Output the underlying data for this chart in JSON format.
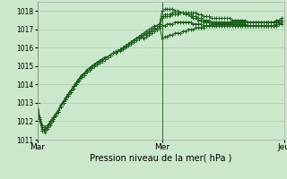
{
  "title": "",
  "xlabel": "Pression niveau de la mer( hPa )",
  "ylabel": "",
  "bg_color": "#cce8cc",
  "grid_color": "#aaccaa",
  "line_color": "#1a5c1a",
  "ylim": [
    1011.0,
    1018.5
  ],
  "xlim": [
    0,
    95
  ],
  "x_ticks": [
    0,
    48,
    95
  ],
  "x_tick_labels": [
    "Mar",
    "Mer",
    "Jeu"
  ],
  "series": [
    [
      1013.0,
      1012.2,
      1011.8,
      1011.7,
      1011.8,
      1012.0,
      1012.2,
      1012.4,
      1012.6,
      1012.9,
      1013.1,
      1013.3,
      1013.5,
      1013.7,
      1013.9,
      1014.1,
      1014.3,
      1014.5,
      1014.6,
      1014.7,
      1014.8,
      1015.0,
      1015.1,
      1015.2,
      1015.2,
      1015.3,
      1015.4,
      1015.5,
      1015.6,
      1015.7,
      1015.7,
      1015.8,
      1015.8,
      1015.9,
      1016.0,
      1016.1,
      1016.2,
      1016.3,
      1016.4,
      1016.5,
      1016.6,
      1016.7,
      1016.8,
      1016.9,
      1017.0,
      1017.1,
      1017.2,
      1017.3,
      1016.5,
      1016.6,
      1016.6,
      1016.7,
      1016.7,
      1016.8,
      1016.8,
      1016.8,
      1016.9,
      1016.9,
      1017.0,
      1017.0,
      1017.0,
      1017.1,
      1017.1,
      1017.1,
      1017.1,
      1017.2,
      1017.2,
      1017.2,
      1017.2,
      1017.3,
      1017.3,
      1017.3,
      1017.3,
      1017.3,
      1017.3,
      1017.3,
      1017.3,
      1017.3,
      1017.3,
      1017.3,
      1017.3,
      1017.2,
      1017.2,
      1017.2,
      1017.2,
      1017.2,
      1017.2,
      1017.2,
      1017.2,
      1017.2,
      1017.2,
      1017.2,
      1017.2,
      1017.3,
      1017.3
    ],
    [
      1013.0,
      1012.1,
      1011.6,
      1011.5,
      1011.7,
      1011.9,
      1012.1,
      1012.3,
      1012.5,
      1012.8,
      1013.0,
      1013.3,
      1013.5,
      1013.7,
      1013.9,
      1014.1,
      1014.3,
      1014.5,
      1014.6,
      1014.8,
      1014.9,
      1015.0,
      1015.1,
      1015.2,
      1015.3,
      1015.3,
      1015.4,
      1015.5,
      1015.6,
      1015.7,
      1015.7,
      1015.8,
      1015.9,
      1016.0,
      1016.1,
      1016.2,
      1016.3,
      1016.4,
      1016.5,
      1016.6,
      1016.6,
      1016.5,
      1016.6,
      1016.7,
      1016.8,
      1016.9,
      1017.0,
      1017.1,
      1017.6,
      1017.7,
      1017.7,
      1017.7,
      1017.8,
      1017.8,
      1017.8,
      1017.9,
      1017.9,
      1017.9,
      1017.9,
      1017.9,
      1017.9,
      1017.9,
      1017.8,
      1017.8,
      1017.7,
      1017.7,
      1017.7,
      1017.6,
      1017.6,
      1017.6,
      1017.6,
      1017.6,
      1017.6,
      1017.6,
      1017.6,
      1017.5,
      1017.5,
      1017.5,
      1017.5,
      1017.5,
      1017.5,
      1017.4,
      1017.4,
      1017.4,
      1017.4,
      1017.4,
      1017.4,
      1017.4,
      1017.4,
      1017.4,
      1017.4,
      1017.4,
      1017.5,
      1017.5,
      1017.6
    ],
    [
      1013.0,
      1012.0,
      1011.5,
      1011.4,
      1011.6,
      1011.8,
      1012.0,
      1012.3,
      1012.5,
      1012.8,
      1013.0,
      1013.2,
      1013.5,
      1013.7,
      1013.9,
      1014.1,
      1014.3,
      1014.5,
      1014.6,
      1014.7,
      1014.8,
      1015.0,
      1015.1,
      1015.2,
      1015.3,
      1015.4,
      1015.5,
      1015.5,
      1015.6,
      1015.7,
      1015.8,
      1015.8,
      1015.9,
      1016.0,
      1016.1,
      1016.2,
      1016.3,
      1016.4,
      1016.5,
      1016.6,
      1016.7,
      1016.8,
      1016.9,
      1017.0,
      1017.1,
      1017.2,
      1017.2,
      1017.3,
      1018.0,
      1018.1,
      1018.1,
      1018.1,
      1018.1,
      1018.0,
      1018.0,
      1017.9,
      1017.9,
      1017.8,
      1017.8,
      1017.7,
      1017.6,
      1017.6,
      1017.5,
      1017.5,
      1017.4,
      1017.4,
      1017.4,
      1017.3,
      1017.3,
      1017.3,
      1017.3,
      1017.3,
      1017.3,
      1017.3,
      1017.3,
      1017.3,
      1017.2,
      1017.2,
      1017.2,
      1017.2,
      1017.2,
      1017.2,
      1017.2,
      1017.2,
      1017.2,
      1017.2,
      1017.2,
      1017.2,
      1017.2,
      1017.2,
      1017.2,
      1017.2,
      1017.3,
      1017.4,
      1017.5
    ],
    [
      1013.0,
      1012.0,
      1011.5,
      1011.5,
      1011.7,
      1011.9,
      1012.1,
      1012.3,
      1012.5,
      1012.8,
      1013.0,
      1013.2,
      1013.4,
      1013.6,
      1013.8,
      1014.0,
      1014.2,
      1014.4,
      1014.5,
      1014.7,
      1014.8,
      1014.9,
      1015.0,
      1015.1,
      1015.2,
      1015.3,
      1015.4,
      1015.5,
      1015.6,
      1015.7,
      1015.7,
      1015.8,
      1015.9,
      1016.0,
      1016.1,
      1016.2,
      1016.3,
      1016.4,
      1016.5,
      1016.5,
      1016.6,
      1016.7,
      1016.8,
      1016.8,
      1016.9,
      1017.0,
      1017.0,
      1017.1,
      1017.7,
      1017.8,
      1017.8,
      1017.8,
      1017.9,
      1017.9,
      1017.9,
      1017.9,
      1017.9,
      1017.9,
      1017.8,
      1017.8,
      1017.7,
      1017.7,
      1017.6,
      1017.6,
      1017.5,
      1017.5,
      1017.5,
      1017.4,
      1017.4,
      1017.4,
      1017.4,
      1017.4,
      1017.4,
      1017.4,
      1017.4,
      1017.4,
      1017.4,
      1017.4,
      1017.4,
      1017.4,
      1017.4,
      1017.4,
      1017.4,
      1017.4,
      1017.4,
      1017.4,
      1017.4,
      1017.4,
      1017.4,
      1017.4,
      1017.4,
      1017.4,
      1017.4,
      1017.4,
      1017.5
    ],
    [
      1013.0,
      1012.1,
      1011.7,
      1011.6,
      1011.7,
      1011.9,
      1012.1,
      1012.3,
      1012.5,
      1012.8,
      1013.0,
      1013.2,
      1013.4,
      1013.6,
      1013.8,
      1014.0,
      1014.2,
      1014.4,
      1014.5,
      1014.7,
      1014.8,
      1014.9,
      1015.0,
      1015.1,
      1015.2,
      1015.3,
      1015.4,
      1015.5,
      1015.6,
      1015.7,
      1015.7,
      1015.8,
      1015.9,
      1016.0,
      1016.1,
      1016.2,
      1016.3,
      1016.4,
      1016.5,
      1016.5,
      1016.6,
      1016.7,
      1016.7,
      1016.8,
      1016.9,
      1017.0,
      1017.0,
      1017.1,
      1017.2,
      1017.2,
      1017.3,
      1017.3,
      1017.3,
      1017.4,
      1017.4,
      1017.4,
      1017.4,
      1017.4,
      1017.4,
      1017.4,
      1017.3,
      1017.3,
      1017.3,
      1017.3,
      1017.2,
      1017.2,
      1017.2,
      1017.2,
      1017.2,
      1017.2,
      1017.2,
      1017.2,
      1017.2,
      1017.2,
      1017.2,
      1017.2,
      1017.2,
      1017.2,
      1017.2,
      1017.2,
      1017.2,
      1017.2,
      1017.2,
      1017.2,
      1017.2,
      1017.2,
      1017.2,
      1017.2,
      1017.2,
      1017.2,
      1017.2,
      1017.2,
      1017.2,
      1017.3,
      1017.4
    ]
  ]
}
